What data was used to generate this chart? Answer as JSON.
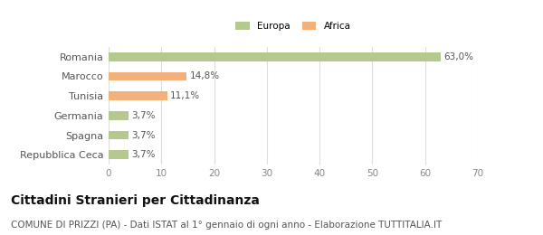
{
  "categories": [
    "Romania",
    "Marocco",
    "Tunisia",
    "Germania",
    "Spagna",
    "Repubblica Ceca"
  ],
  "values": [
    63.0,
    14.8,
    11.1,
    3.7,
    3.7,
    3.7
  ],
  "labels": [
    "63,0%",
    "14,8%",
    "11,1%",
    "3,7%",
    "3,7%",
    "3,7%"
  ],
  "colors": [
    "#b5c98e",
    "#f2b07a",
    "#f2b07a",
    "#b5c98e",
    "#b5c98e",
    "#b5c98e"
  ],
  "legend": [
    {
      "label": "Europa",
      "color": "#b5c98e"
    },
    {
      "label": "Africa",
      "color": "#f2b07a"
    }
  ],
  "xlim": [
    0,
    70
  ],
  "xticks": [
    0,
    10,
    20,
    30,
    40,
    50,
    60,
    70
  ],
  "title": "Cittadini Stranieri per Cittadinanza",
  "subtitle": "COMUNE DI PRIZZI (PA) - Dati ISTAT al 1° gennaio di ogni anno - Elaborazione TUTTITALIA.IT",
  "background_color": "#ffffff",
  "bar_edge_color": "none",
  "grid_color": "#dddddd",
  "title_fontsize": 10,
  "subtitle_fontsize": 7.5,
  "label_fontsize": 7.5,
  "tick_fontsize": 7.5,
  "ytick_fontsize": 8
}
